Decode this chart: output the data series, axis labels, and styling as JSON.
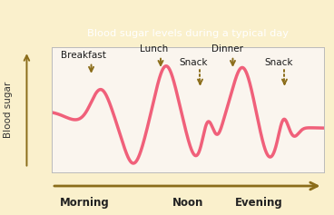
{
  "title": "Blood sugar levels during a typical day",
  "title_bg": "#8B6D1A",
  "title_color": "#FFFFFF",
  "plot_bg": "#FAF5EE",
  "outer_bg": "#FAF0CC",
  "curve_color": "#F0607A",
  "curve_linewidth": 2.5,
  "arrow_color": "#8B6D1A",
  "xlabel_left": "Morning",
  "xlabel_mid": "Noon",
  "xlabel_right": "Evening",
  "ylabel": "Blood sugar",
  "fig_width": 3.68,
  "fig_height": 2.37,
  "dpi": 100
}
